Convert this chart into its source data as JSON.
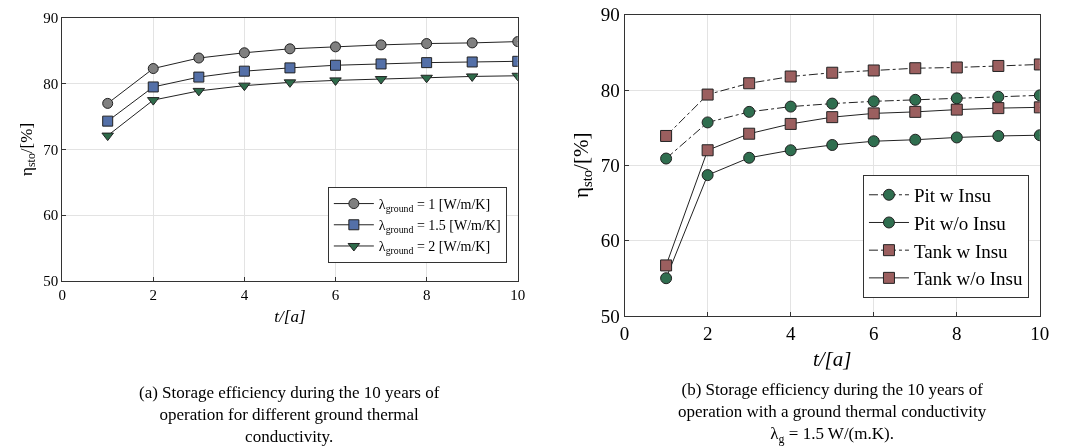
{
  "chart_data": [
    {
      "type": "line",
      "xlabel": "t/[a]",
      "ylabel": "η$_{sto}$/[%]",
      "x": [
        1,
        2,
        3,
        4,
        5,
        6,
        7,
        8,
        9,
        10
      ],
      "xlim": [
        0,
        10
      ],
      "xticks": [
        0,
        2,
        4,
        6,
        8,
        10
      ],
      "ylim": [
        50,
        90
      ],
      "yticks": [
        50,
        60,
        70,
        80,
        90
      ],
      "grid": true,
      "legend": "bottom right",
      "series": [
        {
          "name": "λ$_{ground}$ = 1 [W/m/K]",
          "color": "#808080",
          "marker": "circle",
          "line_style": "solid",
          "values": [
            77.0,
            82.3,
            83.9,
            84.7,
            85.3,
            85.6,
            85.9,
            86.1,
            86.2,
            86.4
          ]
        },
        {
          "name": "λ$_{ground}$ = 1.5 [W/m/K]",
          "color": "#5470a8",
          "marker": "square",
          "line_style": "solid",
          "values": [
            74.3,
            79.5,
            81.0,
            81.9,
            82.4,
            82.8,
            83.0,
            83.2,
            83.3,
            83.4
          ]
        },
        {
          "name": "λ$_{ground}$ = 2 [W/m/K]",
          "color": "#2e6b4a",
          "marker": "triangle",
          "line_style": "solid",
          "values": [
            72.1,
            77.5,
            78.9,
            79.7,
            80.2,
            80.5,
            80.7,
            80.9,
            81.1,
            81.2
          ]
        }
      ],
      "annotations": [
        "(a) Storage efficiency during the 10 years of operation for different ground thermal conductivity."
      ]
    },
    {
      "type": "line",
      "xlabel": "t/[a]",
      "ylabel": "η$_{sto}$/[%]",
      "x": [
        1,
        2,
        3,
        4,
        5,
        6,
        7,
        8,
        9,
        10
      ],
      "xlim": [
        0,
        10
      ],
      "xticks": [
        0,
        2,
        4,
        6,
        8,
        10
      ],
      "ylim": [
        50,
        90
      ],
      "yticks": [
        50,
        60,
        70,
        80,
        90
      ],
      "grid": true,
      "legend": "bottom right",
      "series": [
        {
          "name": "Pit w Insu",
          "color": "#2f6e4f",
          "marker": "circle",
          "line_style": "dashdot",
          "values": [
            70.9,
            75.7,
            77.1,
            77.8,
            78.2,
            78.5,
            78.7,
            78.9,
            79.1,
            79.3
          ]
        },
        {
          "name": "Pit w/o Insu",
          "color": "#2f6e4f",
          "marker": "circle",
          "line_style": "solid",
          "values": [
            55.0,
            68.7,
            71.0,
            72.0,
            72.7,
            73.2,
            73.4,
            73.7,
            73.9,
            74.0
          ]
        },
        {
          "name": "Tank w Insu",
          "color": "#9b5f5f",
          "marker": "square",
          "line_style": "dashdot",
          "values": [
            73.9,
            79.4,
            80.9,
            81.8,
            82.3,
            82.6,
            82.9,
            83.0,
            83.2,
            83.4
          ]
        },
        {
          "name": "Tank w/o Insu",
          "color": "#9b5f5f",
          "marker": "square",
          "line_style": "solid",
          "values": [
            56.7,
            72.0,
            74.2,
            75.5,
            76.4,
            76.9,
            77.1,
            77.4,
            77.6,
            77.7
          ]
        }
      ],
      "annotations": [
        "(b) Storage efficiency during the 10 years of operation with a ground thermal conductivity λ$_{g}$ = 1.5 W/(m.K)."
      ]
    }
  ]
}
